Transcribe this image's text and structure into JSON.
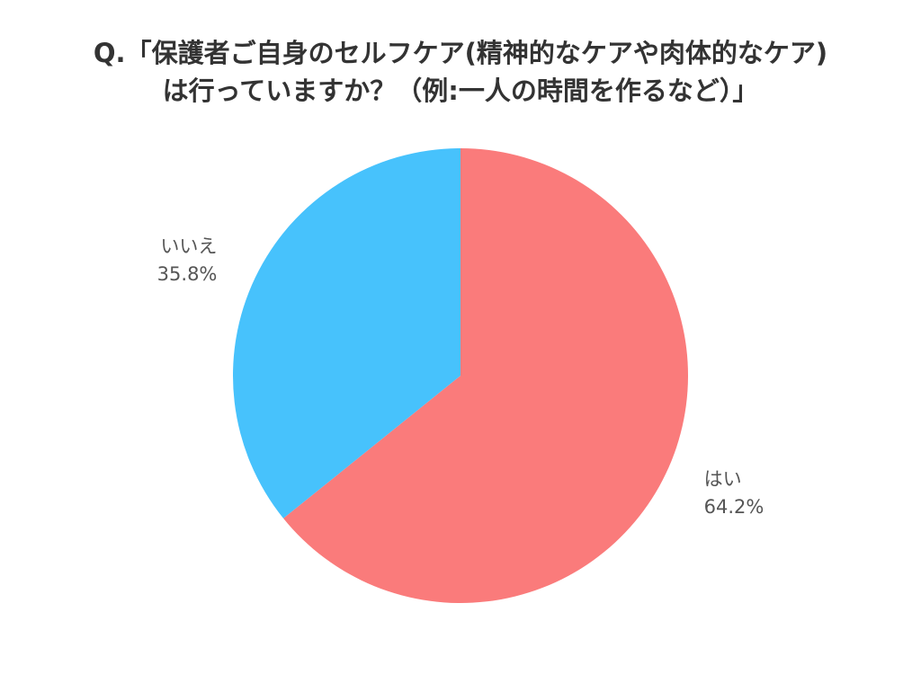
{
  "chart_data": {
    "type": "pie",
    "title": "Q.「保護者ご自身のセルフケア(精神的なケアや肉体的なケア) は行っていますか？（例:一人の時間を作るなど）」",
    "title_lines": [
      "Q.「保護者ご自身のセルフケア(精神的なケアや肉体的なケア)",
      "は行っていますか？（例:一人の時間を作るなど）」"
    ],
    "slices": [
      {
        "label": "はい",
        "value": 64.2,
        "value_label": "64.2%",
        "color": "#FA7B7B"
      },
      {
        "label": "いいえ",
        "value": 35.8,
        "value_label": "35.8%",
        "color": "#47C2FC"
      }
    ],
    "start_angle": "12 o'clock",
    "direction": "clockwise",
    "label_color": "#555555"
  }
}
